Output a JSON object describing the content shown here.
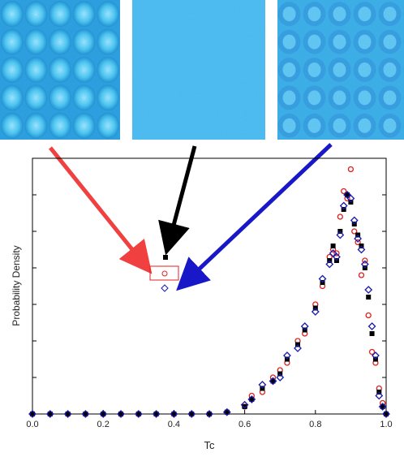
{
  "chart_data": {
    "type": "scatter",
    "x_label": "Tc",
    "y_label": "Probability Density",
    "xlim": [
      0,
      1
    ],
    "ylim": [
      0,
      7
    ],
    "xticks": [
      {
        "value": 0,
        "label": "0.0"
      },
      {
        "value": 0.2,
        "label": "0.2"
      },
      {
        "value": 0.4,
        "label": "0.4"
      },
      {
        "value": 0.6,
        "label": "0.6"
      },
      {
        "value": 0.8,
        "label": "0.8"
      },
      {
        "value": 1,
        "label": "1.0"
      }
    ],
    "yticks": [
      1,
      2,
      3,
      4,
      5,
      6
    ],
    "x": [
      0,
      0.05,
      0.1,
      0.15,
      0.2,
      0.25,
      0.3,
      0.35,
      0.4,
      0.45,
      0.5,
      0.55,
      0.6,
      0.62,
      0.65,
      0.68,
      0.7,
      0.72,
      0.75,
      0.77,
      0.8,
      0.82,
      0.84,
      0.85,
      0.86,
      0.87,
      0.88,
      0.89,
      0.9,
      0.91,
      0.92,
      0.93,
      0.94,
      0.95,
      0.96,
      0.97,
      0.98,
      0.99,
      1
    ],
    "series": [
      {
        "color": "#000000",
        "marker": "square",
        "values": [
          0,
          0,
          0,
          0,
          0,
          0,
          0,
          0,
          0,
          0,
          0,
          0.05,
          0.2,
          0.4,
          0.7,
          0.9,
          1.1,
          1.5,
          1.9,
          2.3,
          2.9,
          3.6,
          4.2,
          4.6,
          4.2,
          5.0,
          5.6,
          6.0,
          5.8,
          5.2,
          4.9,
          4.6,
          4.0,
          3.2,
          2.2,
          1.5,
          0.6,
          0.2,
          0
        ]
      },
      {
        "color": "#e02020",
        "marker": "circle",
        "values": [
          0,
          0,
          0,
          0,
          0,
          0,
          0,
          0,
          0,
          0,
          0,
          0.05,
          0.2,
          0.5,
          0.6,
          1.0,
          1.2,
          1.4,
          2.0,
          2.2,
          3.0,
          3.5,
          4.3,
          4.5,
          4.4,
          5.4,
          6.1,
          5.9,
          6.7,
          5.0,
          4.7,
          3.8,
          4.2,
          2.7,
          1.7,
          1.4,
          0.7,
          0.3,
          0
        ]
      },
      {
        "color": "#1a1aaa",
        "marker": "diamond",
        "values": [
          0,
          0,
          0,
          0,
          0,
          0,
          0,
          0,
          0,
          0,
          0,
          0.05,
          0.25,
          0.4,
          0.8,
          0.9,
          1.0,
          1.6,
          1.8,
          2.4,
          2.8,
          3.7,
          4.1,
          4.4,
          4.3,
          4.9,
          5.7,
          6.0,
          5.9,
          5.3,
          4.8,
          4.5,
          4.1,
          3.4,
          2.4,
          1.6,
          0.5,
          0.2,
          0
        ]
      }
    ]
  }
}
